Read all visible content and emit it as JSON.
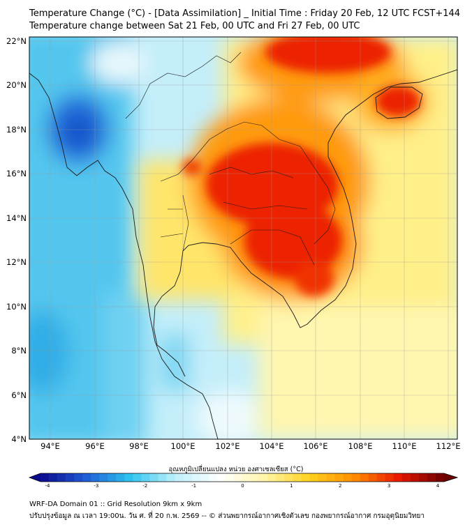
{
  "title": {
    "line1": "Temperature Change (°C) - [Data Assimilation] _ Initial Time : Friday 20 Feb, 12 UTC FCST+144",
    "line2": "Temperature change between Sat 21 Feb, 00 UTC and Fri 27 Feb, 00 UTC"
  },
  "map": {
    "lat_labels": [
      "22°N",
      "20°N",
      "18°N",
      "16°N",
      "14°N",
      "12°N",
      "10°N",
      "8°N",
      "6°N",
      "4°N"
    ],
    "lon_labels": [
      "94°E",
      "96°E",
      "98°E",
      "100°E",
      "102°E",
      "104°E",
      "106°E",
      "108°E",
      "110°E",
      "112°E"
    ],
    "lat_range": [
      4,
      22.2
    ],
    "lon_range": [
      93,
      112.4
    ],
    "hotspots": [
      {
        "name": "mainland-warm-core",
        "lon": 104.5,
        "lat": 14.8,
        "value": 3.0
      },
      {
        "name": "northeast-thailand-warm",
        "lon": 103.5,
        "lat": 16.0,
        "value": 3.2
      },
      {
        "name": "cambodia-warm",
        "lon": 105.5,
        "lat": 12.5,
        "value": 3.0
      },
      {
        "name": "north-vietnam-warm",
        "lon": 106,
        "lat": 21,
        "value": 3.0
      },
      {
        "name": "hainan-warm",
        "lon": 109.8,
        "lat": 19.3,
        "value": 3.2
      },
      {
        "name": "myanmar-cold-core",
        "lon": 95.6,
        "lat": 17.8,
        "value": -2.3
      },
      {
        "name": "andaman-cool",
        "lon": 93.5,
        "lat": 8,
        "value": -1.3
      }
    ]
  },
  "colorbar": {
    "label": "อุณหภูมิเปลี่ยนแปลง หน่วย องศาเซลเซียส (°C)",
    "ticks": [
      "-4",
      "-3",
      "-2",
      "-1",
      "0",
      "1",
      "2",
      "3",
      "4"
    ],
    "min": -4,
    "max": 4,
    "colors": {
      "deep_blue": "#0a0a8c",
      "blue": "#1f5cd6",
      "cyan": "#2ec4f0",
      "light_cyan": "#bff0fb",
      "white": "#ffffff",
      "light_yellow": "#fff5a8",
      "yellow": "#ffd21e",
      "orange": "#ff8c00",
      "red": "#e81800",
      "dark_red": "#6b0000"
    }
  },
  "footer": {
    "line1": "WRF-DA Domain 01 :: Grid Resolution 9km x 9km",
    "line2": "ปรับปรุงข้อมูล ณ เวลา 19:00น. วัน ศ. ที่ 20 ก.พ. 2569 -- © ส่วนพยากรณ์อากาศเชิงตัวเลข กองพยากรณ์อากาศ กรมอุตุนิยมวิทยา"
  }
}
